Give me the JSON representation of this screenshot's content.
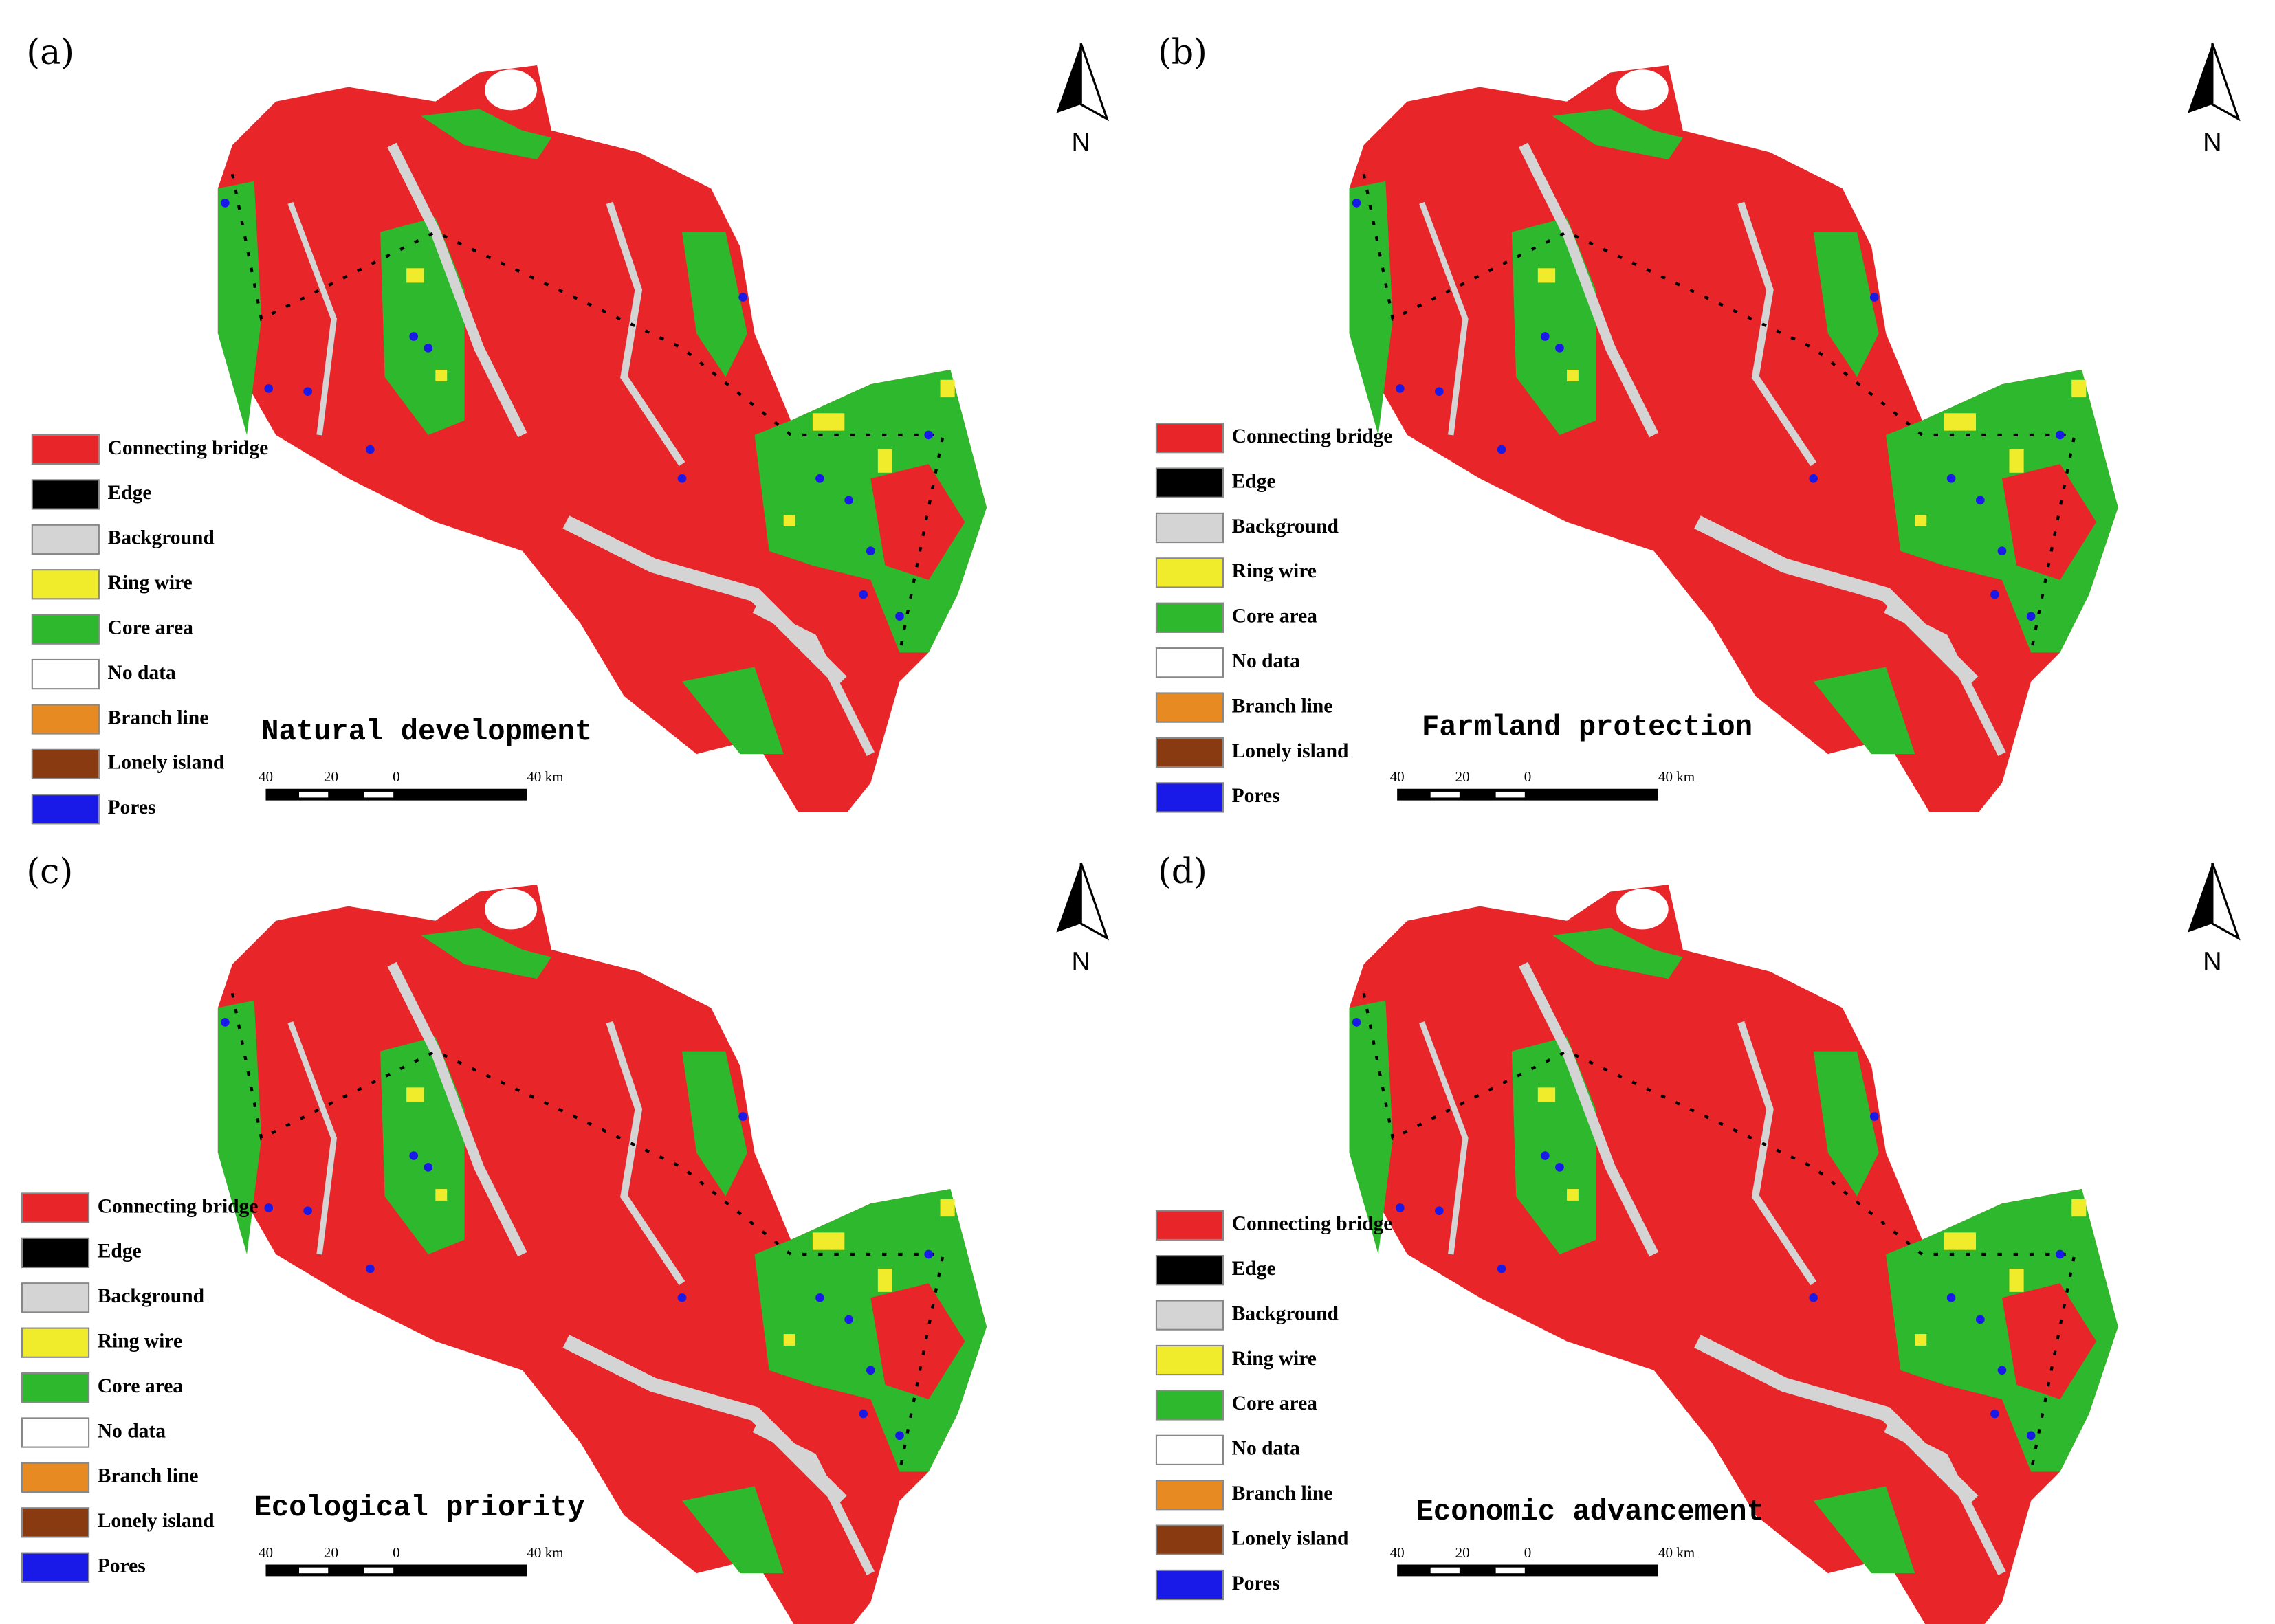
{
  "panels": [
    {
      "label": "(a)",
      "title": "Natural development"
    },
    {
      "label": "(b)",
      "title": "Farmland protection"
    },
    {
      "label": "(c)",
      "title": "Ecological priority"
    },
    {
      "label": "(d)",
      "title": "Economic advancement"
    }
  ],
  "legend": [
    {
      "label": "Connecting bridge",
      "color": "#e8262a"
    },
    {
      "label": "Edge",
      "color": "#000000"
    },
    {
      "label": "Background",
      "color": "#d4d4d4"
    },
    {
      "label": "Ring wire",
      "color": "#f0ec2c"
    },
    {
      "label": "Core area",
      "color": "#2db82d"
    },
    {
      "label": "No data",
      "color": "#ffffff"
    },
    {
      "label": "Branch line",
      "color": "#e88a22"
    },
    {
      "label": "Lonely island",
      "color": "#8a3a10"
    },
    {
      "label": "Pores",
      "color": "#1a1ae8"
    }
  ],
  "scale_bar": [
    "40",
    "20",
    "0",
    "40 km"
  ],
  "north": "N"
}
